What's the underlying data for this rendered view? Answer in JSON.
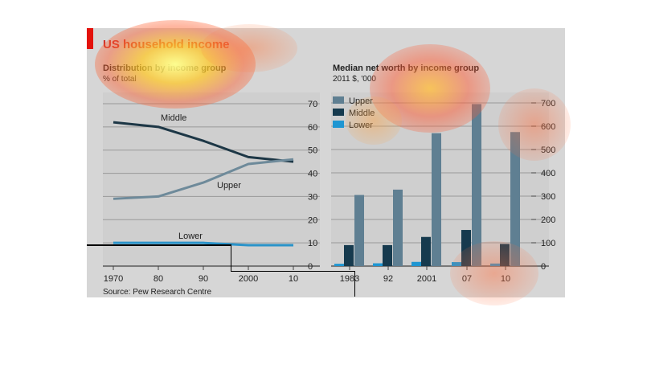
{
  "figure": {
    "title": "US household income",
    "source": "Source: Pew Research Centre"
  },
  "chart_data": [
    {
      "type": "line",
      "title": "Distribution by income group",
      "subtitle": "% of total",
      "x": [
        1970,
        1980,
        1990,
        2000,
        2010
      ],
      "x_tick_labels": [
        "1970",
        "80",
        "90",
        "2000",
        "10"
      ],
      "ylim": [
        0,
        70
      ],
      "y_ticks": [
        0,
        10,
        20,
        30,
        40,
        50,
        60,
        70
      ],
      "series": [
        {
          "name": "Middle",
          "values": [
            62,
            60,
            54,
            47,
            45
          ],
          "color": "#1d3746"
        },
        {
          "name": "Upper",
          "values": [
            29,
            30,
            36,
            44,
            46
          ],
          "color": "#6e8a9a"
        },
        {
          "name": "Lower",
          "values": [
            10,
            10,
            10,
            9,
            9
          ],
          "color": "#2a93c9"
        }
      ],
      "grid": true
    },
    {
      "type": "bar",
      "title": "Median net worth by income group",
      "subtitle": "2011 $, '000",
      "categories": [
        "1983",
        "92",
        "2001",
        "07",
        "10"
      ],
      "ylim": [
        0,
        700
      ],
      "y_ticks": [
        0,
        100,
        200,
        300,
        400,
        500,
        600,
        700
      ],
      "series": [
        {
          "name": "Upper",
          "values": [
            305,
            328,
            570,
            695,
            575
          ],
          "color": "#5f7f92"
        },
        {
          "name": "Middle",
          "values": [
            90,
            90,
            125,
            155,
            95
          ],
          "color": "#163a4e"
        },
        {
          "name": "Lower",
          "values": [
            10,
            12,
            18,
            17,
            11
          ],
          "color": "#1f96d2"
        }
      ],
      "legend": "top-left",
      "grid": true
    }
  ]
}
